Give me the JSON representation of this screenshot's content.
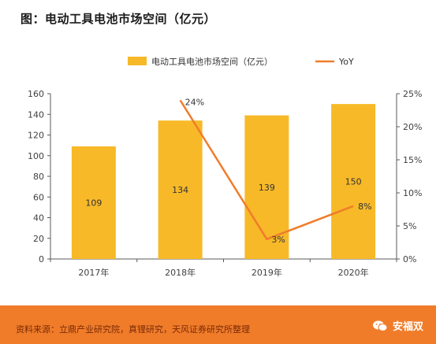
{
  "figure_title": "图：电动工具电池市场空间（亿元）",
  "footer": {
    "source": "资料来源：立鼎产业研究院，真锂研究，天风证券研究所整理",
    "brand": "安福双",
    "brand_icon": "wechat-icon"
  },
  "chart_data": {
    "type": "bar",
    "categories": [
      "2017年",
      "2018年",
      "2019年",
      "2020年"
    ],
    "series": [
      {
        "name": "电动工具电池市场空间（亿元）",
        "type": "bar",
        "axis": "left",
        "values": [
          109,
          134,
          139,
          150
        ],
        "labels": [
          "109",
          "134",
          "139",
          "150"
        ],
        "color": "#f7b928"
      },
      {
        "name": "YoY",
        "type": "line",
        "axis": "right",
        "values": [
          null,
          24,
          3,
          8
        ],
        "labels": [
          "",
          "24%",
          "3%",
          "8%"
        ],
        "color": "#f07c2a"
      }
    ],
    "y_left": {
      "min": 0,
      "max": 160,
      "ticks": [
        "0",
        "20",
        "40",
        "60",
        "80",
        "100",
        "120",
        "140",
        "160"
      ]
    },
    "y_right": {
      "min": 0,
      "max": 25,
      "ticks": [
        "0%",
        "5%",
        "10%",
        "15%",
        "20%",
        "25%"
      ]
    },
    "legend": "top",
    "grid": false
  }
}
